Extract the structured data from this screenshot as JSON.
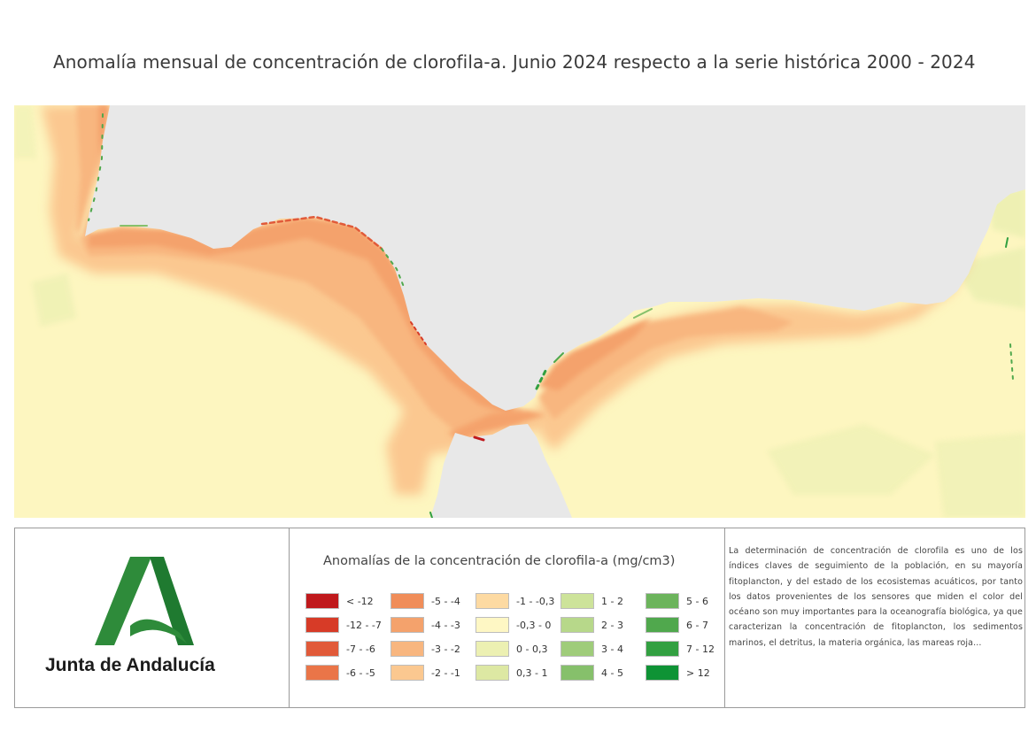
{
  "title": "Anomalía mensual de concentración de clorofila-a. Junio 2024 respecto a la serie histórica 2000 - 2024",
  "logo": {
    "brand_text": "Junta de Andalucía",
    "icon": "junta-andalucia-logo"
  },
  "legend": {
    "title": "Anomalías de la concentración de clorofila-a (mg/cm3)",
    "items": [
      {
        "label": "< -12",
        "color": "#c0191c"
      },
      {
        "label": "-12 - -7",
        "color": "#d73b27"
      },
      {
        "label": "-7 - -6",
        "color": "#e15a39"
      },
      {
        "label": "-6 - -5",
        "color": "#ea7548"
      },
      {
        "label": "-5 - -4",
        "color": "#f08d59"
      },
      {
        "label": "-4 - -3",
        "color": "#f4a26c"
      },
      {
        "label": "-3 - -2",
        "color": "#f8b67f"
      },
      {
        "label": "-2 - -1",
        "color": "#fbc890"
      },
      {
        "label": "-1 - -0,3",
        "color": "#fddaa2"
      },
      {
        "label": "-0,3 - 0",
        "color": "#fef7c4"
      },
      {
        "label": "0 - 0,3",
        "color": "#ecf0b2"
      },
      {
        "label": "0,3 - 1",
        "color": "#dde8a3"
      },
      {
        "label": "1 - 2",
        "color": "#cde39a"
      },
      {
        "label": "2 - 3",
        "color": "#b7d88a"
      },
      {
        "label": "3 - 4",
        "color": "#9fcc7a"
      },
      {
        "label": "4 - 5",
        "color": "#86c06b"
      },
      {
        "label": "5 - 6",
        "color": "#6cb45c"
      },
      {
        "label": "6 - 7",
        "color": "#50a84d"
      },
      {
        "label": "7 - 12",
        "color": "#32a041"
      },
      {
        "label": "> 12",
        "color": "#0e9335"
      }
    ]
  },
  "description": "La determinación de concentración de clorofila es uno de los índices claves de seguimiento de la población, en su mayoría fitoplancton, y del estado de los ecosistemas acuáticos, por tanto los datos provenientes de los sensores que miden el color del océano son muy importantes para la oceanografía biológica, ya que caracterizan la concentración de fitoplancton, los sedimentos marinos, el detritus, la materia orgánica, las mareas roja...",
  "colors": {
    "land": "#e8e8e8",
    "ocean_base": "#fdf6c0",
    "border": "#9a9a9a"
  }
}
